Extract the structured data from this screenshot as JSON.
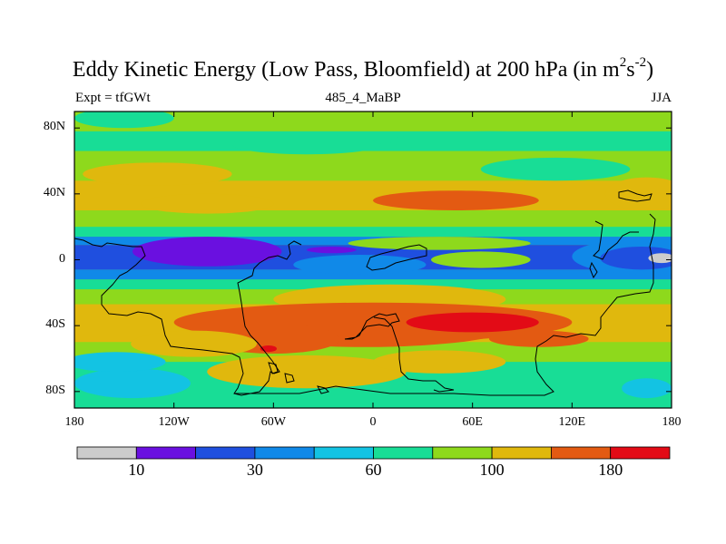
{
  "title": {
    "main": "Eddy Kinetic Energy (Low Pass, Bloomfield) at 200 hPa (in m",
    "sup1": "2",
    "mid": "s",
    "sup2": "-2",
    "close": ")"
  },
  "subtitle": {
    "left": "Expt = tfGWt",
    "center": "485_4_MaBP",
    "right": "JJA"
  },
  "chart_data": {
    "type": "heatmap",
    "title": "Eddy Kinetic Energy (Low Pass, Bloomfield) at 200 hPa (in m2s-2)",
    "projection": "cylindrical equidistant",
    "xlim": [
      -180,
      180
    ],
    "ylim": [
      -90,
      90
    ],
    "x_ticks": [
      {
        "value": -180,
        "label": "180"
      },
      {
        "value": -120,
        "label": "120W"
      },
      {
        "value": -60,
        "label": "60W"
      },
      {
        "value": 0,
        "label": "0"
      },
      {
        "value": 60,
        "label": "60E"
      },
      {
        "value": 120,
        "label": "120E"
      },
      {
        "value": 180,
        "label": "180"
      }
    ],
    "y_ticks": [
      {
        "value": 80,
        "label": "80N"
      },
      {
        "value": 40,
        "label": "40N"
      },
      {
        "value": 0,
        "label": "0"
      },
      {
        "value": -40,
        "label": "40S"
      },
      {
        "value": -80,
        "label": "80S"
      }
    ],
    "levels": [
      10,
      20,
      30,
      45,
      60,
      80,
      100,
      140,
      180
    ],
    "colors": [
      "#cccccc",
      "#6a10e0",
      "#1f4fdf",
      "#1089e8",
      "#13c3e3",
      "#18dd96",
      "#8ed91c",
      "#e0b80d",
      "#e35a12",
      "#e30b16"
    ],
    "colorbar_labels": [
      {
        "level_index": 0,
        "label": "10"
      },
      {
        "level_index": 2,
        "label": "30"
      },
      {
        "level_index": 4,
        "label": "60"
      },
      {
        "level_index": 6,
        "label": "100"
      },
      {
        "level_index": 8,
        "label": "180"
      }
    ],
    "overlay": "continent outlines (black)"
  }
}
